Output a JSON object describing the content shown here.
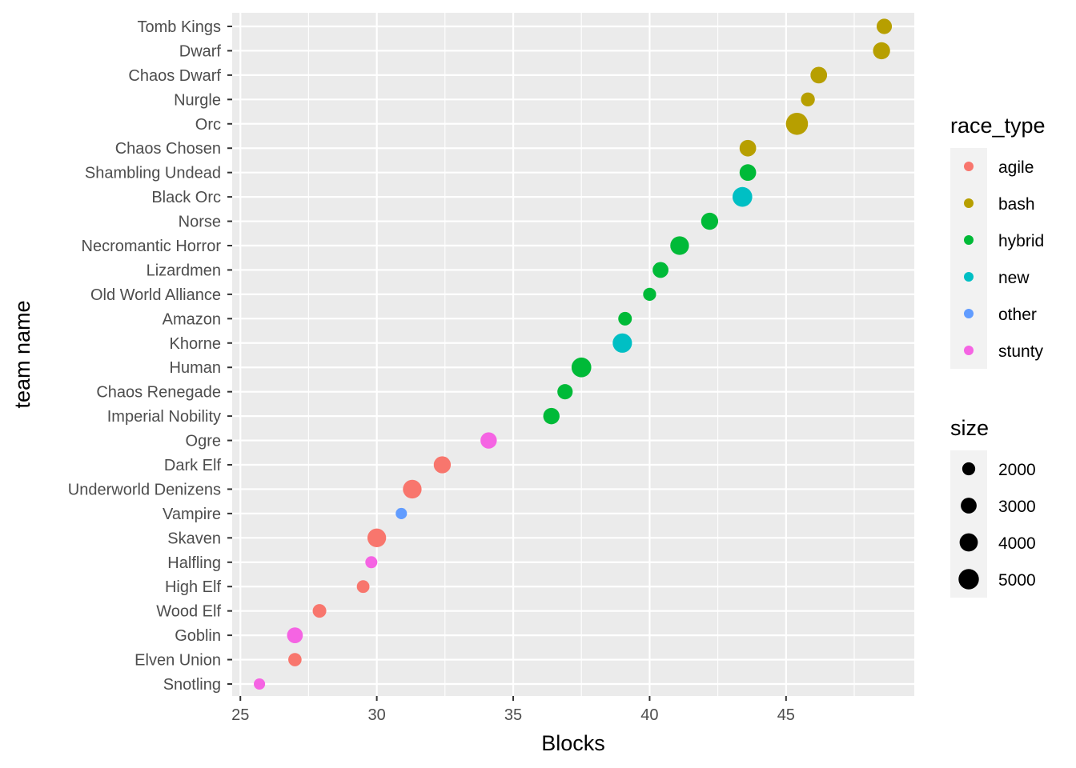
{
  "chart_data": {
    "type": "scatter",
    "xlabel": "Blocks",
    "ylabel": "team name",
    "xlim": [
      24.7,
      49.7
    ],
    "x_ticks": [
      25,
      30,
      35,
      40,
      45
    ],
    "grid": true,
    "legend_position": "right",
    "color_legend": {
      "title": "race_type",
      "entries": [
        {
          "label": "agile",
          "color": "#F8766D"
        },
        {
          "label": "bash",
          "color": "#B79F00"
        },
        {
          "label": "hybrid",
          "color": "#00BA38"
        },
        {
          "label": "new",
          "color": "#00BFC4"
        },
        {
          "label": "other",
          "color": "#619CFF"
        },
        {
          "label": "stunty",
          "color": "#F564E3"
        }
      ]
    },
    "size_legend": {
      "title": "size",
      "entries": [
        {
          "label": "2000",
          "value": 2000
        },
        {
          "label": "3000",
          "value": 3000
        },
        {
          "label": "4000",
          "value": 4000
        },
        {
          "label": "5000",
          "value": 5000
        }
      ]
    },
    "points": [
      {
        "team": "Tomb Kings",
        "x": 48.6,
        "race_type": "bash",
        "size": 2800
      },
      {
        "team": "Dwarf",
        "x": 48.5,
        "race_type": "bash",
        "size": 3500
      },
      {
        "team": "Chaos Dwarf",
        "x": 46.2,
        "race_type": "bash",
        "size": 3300
      },
      {
        "team": "Nurgle",
        "x": 45.8,
        "race_type": "bash",
        "size": 2300
      },
      {
        "team": "Orc",
        "x": 45.4,
        "race_type": "bash",
        "size": 5900
      },
      {
        "team": "Chaos Chosen",
        "x": 43.6,
        "race_type": "bash",
        "size": 3300
      },
      {
        "team": "Shambling Undead",
        "x": 43.6,
        "race_type": "hybrid",
        "size": 3300
      },
      {
        "team": "Black Orc",
        "x": 43.4,
        "race_type": "new",
        "size": 4700
      },
      {
        "team": "Norse",
        "x": 42.2,
        "race_type": "hybrid",
        "size": 3500
      },
      {
        "team": "Necromantic Horror",
        "x": 41.1,
        "race_type": "hybrid",
        "size": 4200
      },
      {
        "team": "Lizardmen",
        "x": 40.4,
        "race_type": "hybrid",
        "size": 3000
      },
      {
        "team": "Old World Alliance",
        "x": 40.0,
        "race_type": "hybrid",
        "size": 2000
      },
      {
        "team": "Amazon",
        "x": 39.1,
        "race_type": "hybrid",
        "size": 2200
      },
      {
        "team": "Khorne",
        "x": 39.0,
        "race_type": "new",
        "size": 4500
      },
      {
        "team": "Human",
        "x": 37.5,
        "race_type": "hybrid",
        "size": 4700
      },
      {
        "team": "Chaos Renegade",
        "x": 36.9,
        "race_type": "hybrid",
        "size": 2800
      },
      {
        "team": "Imperial Nobility",
        "x": 36.4,
        "race_type": "hybrid",
        "size": 3200
      },
      {
        "team": "Ogre",
        "x": 34.1,
        "race_type": "stunty",
        "size": 3200
      },
      {
        "team": "Dark Elf",
        "x": 32.4,
        "race_type": "agile",
        "size": 3500
      },
      {
        "team": "Underworld Denizens",
        "x": 31.3,
        "race_type": "agile",
        "size": 4200
      },
      {
        "team": "Vampire",
        "x": 30.9,
        "race_type": "other",
        "size": 1500
      },
      {
        "team": "Skaven",
        "x": 30.0,
        "race_type": "agile",
        "size": 4200
      },
      {
        "team": "Halfling",
        "x": 29.8,
        "race_type": "stunty",
        "size": 1700
      },
      {
        "team": "High Elf",
        "x": 29.5,
        "race_type": "agile",
        "size": 1900
      },
      {
        "team": "Wood Elf",
        "x": 27.9,
        "race_type": "agile",
        "size": 2200
      },
      {
        "team": "Goblin",
        "x": 27.0,
        "race_type": "stunty",
        "size": 3000
      },
      {
        "team": "Elven Union",
        "x": 27.0,
        "race_type": "agile",
        "size": 2100
      },
      {
        "team": "Snotling",
        "x": 25.7,
        "race_type": "stunty",
        "size": 1500
      }
    ]
  }
}
